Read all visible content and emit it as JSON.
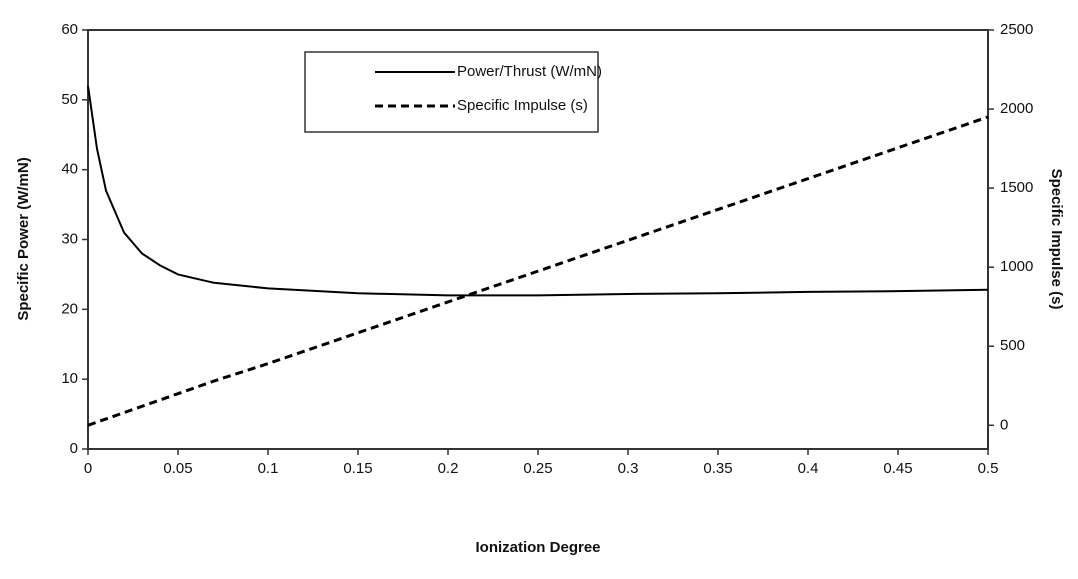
{
  "chart_data": {
    "type": "line",
    "x_label": "Ionization Degree",
    "y_label": "Specific Power (W/mN)",
    "y2_label": "Specific Impulse (s)",
    "x": [
      0,
      0.005,
      0.01,
      0.02,
      0.03,
      0.04,
      0.05,
      0.07,
      0.1,
      0.15,
      0.2,
      0.25,
      0.3,
      0.35,
      0.4,
      0.45,
      0.5
    ],
    "series": [
      {
        "name": "Power/Thrust (W/mN)",
        "color": "#000000",
        "style": "solid",
        "axis": "y",
        "values": [
          52,
          43,
          37,
          31,
          28,
          26.3,
          25,
          23.8,
          23,
          22.3,
          22,
          22,
          22.2,
          22.3,
          22.5,
          22.6,
          22.8
        ]
      },
      {
        "name": "Specific Impulse (s)",
        "color": "#000000",
        "style": "dashed",
        "axis": "y2",
        "values": [
          0,
          20,
          40,
          80,
          120,
          160,
          200,
          280,
          390,
          585,
          780,
          975,
          1170,
          1365,
          1560,
          1755,
          1950
        ]
      }
    ],
    "xlim": [
      0,
      0.5
    ],
    "xticks": [
      0,
      0.05,
      0.1,
      0.15,
      0.2,
      0.25,
      0.3,
      0.35,
      0.4,
      0.45,
      0.5
    ],
    "ylim": [
      0,
      60
    ],
    "yticks": [
      0,
      10,
      20,
      30,
      40,
      50,
      60
    ],
    "y2lim": [
      -150,
      2500
    ],
    "y2ticks": [
      0,
      500,
      1000,
      1500,
      2000,
      2500
    ],
    "legend": "top-center"
  }
}
